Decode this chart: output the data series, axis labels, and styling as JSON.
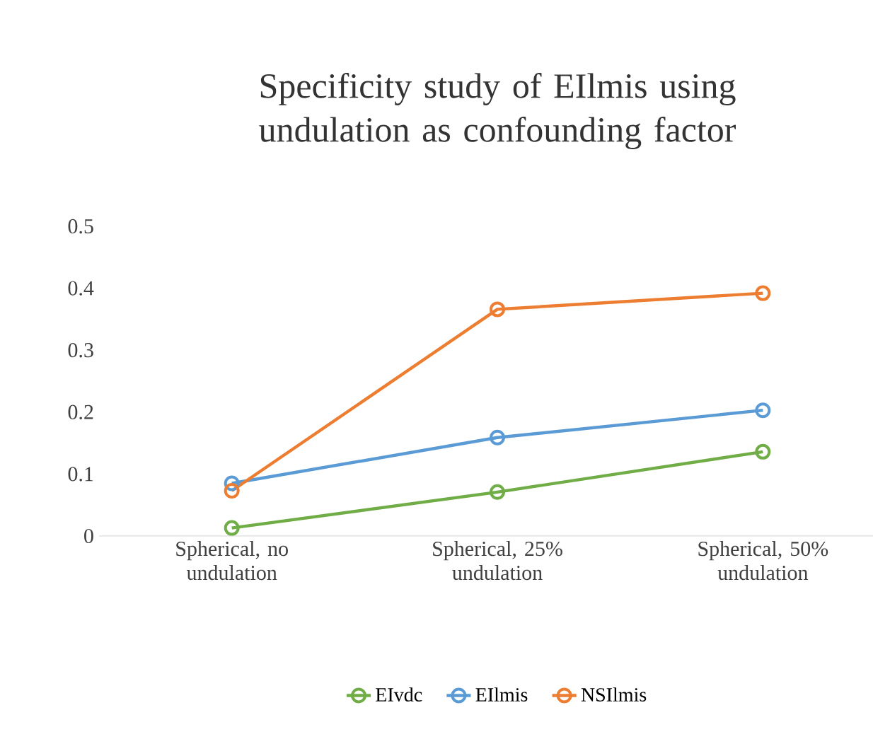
{
  "chart_data": {
    "type": "line",
    "title": "Specificity study of EIlmis using undulation as confounding factor",
    "categories": [
      "Spherical, no undulation",
      "Spherical, 25% undulation",
      "Spherical, 50% undulation"
    ],
    "series": [
      {
        "name": "EIvdc",
        "color": "#70ad47",
        "values": [
          0.013,
          0.071,
          0.136
        ]
      },
      {
        "name": "EIlmis",
        "color": "#5b9bd5",
        "values": [
          0.085,
          0.159,
          0.203
        ]
      },
      {
        "name": "NSIlmis",
        "color": "#ed7d31",
        "values": [
          0.073,
          0.366,
          0.392
        ]
      }
    ],
    "ylim": [
      0,
      0.5
    ],
    "yticks": [
      0,
      0.1,
      0.2,
      0.3,
      0.4,
      0.5
    ],
    "grid": false,
    "legend": "bottom",
    "marker": "circle",
    "line_style": "solid"
  }
}
